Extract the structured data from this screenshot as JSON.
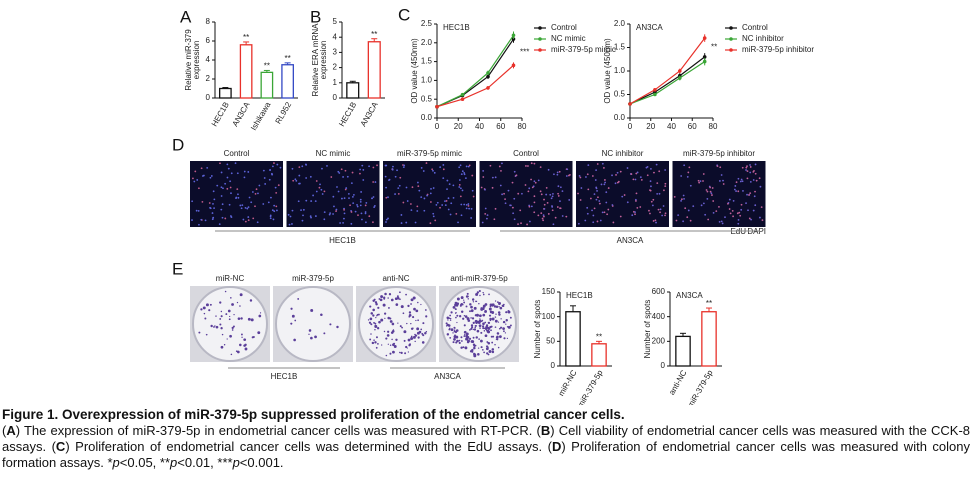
{
  "chart_data": [
    {
      "type": "bar",
      "panel": "A",
      "ylabel": "Relative miR-379\nexpression",
      "categories": [
        "HEC1B",
        "AN3CA",
        "Ishikawa",
        "RL952"
      ],
      "values": [
        1.0,
        5.6,
        2.7,
        3.5
      ],
      "errors": [
        0.1,
        0.3,
        0.2,
        0.2
      ],
      "colors": [
        "#111111",
        "#e8312a",
        "#3aa636",
        "#3348c4"
      ],
      "significance": [
        null,
        "**",
        "**",
        "**"
      ],
      "ylim": [
        0,
        8
      ],
      "yticks": [
        0,
        2,
        4,
        6,
        8
      ]
    },
    {
      "type": "bar",
      "panel": "B",
      "ylabel": "Relative ERA mRNA\nexpression",
      "categories": [
        "HEC1B",
        "AN3CA"
      ],
      "values": [
        1.0,
        3.7
      ],
      "errors": [
        0.1,
        0.2
      ],
      "colors": [
        "#111111",
        "#e8312a"
      ],
      "significance": [
        null,
        "**"
      ],
      "ylim": [
        0,
        5
      ],
      "yticks": [
        0,
        1,
        2,
        3,
        4,
        5
      ]
    },
    {
      "type": "line",
      "panel": "C",
      "title": "HEC1B",
      "ylabel": "OD value (450nm)",
      "x": [
        0,
        24,
        48,
        72
      ],
      "series": [
        {
          "name": "Control",
          "color": "#111111",
          "values": [
            0.3,
            0.6,
            1.1,
            2.1
          ],
          "errors": [
            0.02,
            0.04,
            0.06,
            0.1
          ]
        },
        {
          "name": "NC mimic",
          "color": "#3aa636",
          "values": [
            0.3,
            0.62,
            1.2,
            2.2
          ],
          "errors": [
            0.02,
            0.04,
            0.06,
            0.1
          ]
        },
        {
          "name": "miR-379-5p mimic",
          "color": "#e8312a",
          "values": [
            0.3,
            0.5,
            0.8,
            1.4
          ],
          "errors": [
            0.02,
            0.03,
            0.05,
            0.08
          ]
        }
      ],
      "significance": "***",
      "xlim": [
        0,
        80
      ],
      "xticks": [
        0,
        20,
        40,
        60,
        80
      ],
      "ylim": [
        0,
        2.5
      ],
      "yticks": [
        {
          "value": 0,
          "label": "0.0"
        },
        {
          "value": 0.5,
          "label": "0.5"
        },
        {
          "value": 1,
          "label": "1.0"
        },
        {
          "value": 1.5,
          "label": "1.5"
        },
        {
          "value": 2,
          "label": "2.0"
        },
        {
          "value": 2.5,
          "label": "2.5"
        }
      ]
    },
    {
      "type": "line",
      "title": "AN3CA",
      "ylabel": "OD value (450nm)",
      "x": [
        0,
        24,
        48,
        72
      ],
      "series": [
        {
          "name": "Control",
          "color": "#111111",
          "values": [
            0.3,
            0.55,
            0.9,
            1.3
          ],
          "errors": [
            0.02,
            0.03,
            0.05,
            0.08
          ]
        },
        {
          "name": "NC inhibitor",
          "color": "#3aa636",
          "values": [
            0.3,
            0.5,
            0.85,
            1.2
          ],
          "errors": [
            0.02,
            0.03,
            0.05,
            0.08
          ]
        },
        {
          "name": "miR-379-5p inhibitor",
          "color": "#e8312a",
          "values": [
            0.3,
            0.6,
            1.0,
            1.7
          ],
          "errors": [
            0.02,
            0.03,
            0.05,
            0.08
          ]
        }
      ],
      "significance": "**",
      "xlim": [
        0,
        80
      ],
      "xticks": [
        0,
        20,
        40,
        60,
        80
      ],
      "ylim": [
        0,
        2
      ],
      "yticks": [
        {
          "value": 0,
          "label": "0.0"
        },
        {
          "value": 0.5,
          "label": "0.5"
        },
        {
          "value": 1,
          "label": "1.0"
        },
        {
          "value": 1.5,
          "label": "1.5"
        },
        {
          "value": 2,
          "label": "2.0"
        }
      ]
    },
    {
      "type": "bar",
      "title": "HEC1B",
      "ylabel": "Number of spots",
      "categories": [
        "miR-NC",
        "miR-379-5p"
      ],
      "values": [
        110,
        45
      ],
      "errors": [
        12,
        5
      ],
      "colors": [
        "#111111",
        "#e8312a"
      ],
      "significance": [
        null,
        "**"
      ],
      "ylim": [
        0,
        150
      ],
      "yticks": [
        0,
        50,
        100,
        150
      ]
    },
    {
      "type": "bar",
      "title": "AN3CA",
      "ylabel": "Number of spots",
      "categories": [
        "anti-NC",
        "anti-miR-379-5p"
      ],
      "values": [
        240,
        440
      ],
      "errors": [
        25,
        30
      ],
      "colors": [
        "#111111",
        "#e8312a"
      ],
      "significance": [
        null,
        "**"
      ],
      "ylim": [
        0,
        600
      ],
      "yticks": [
        0,
        200,
        400,
        600
      ]
    }
  ],
  "edu_panel": {
    "panel": "D",
    "columns": [
      "Control",
      "NC mimic",
      "miR-379-5p mimic",
      "Control",
      "NC inhibitor",
      "miR-379-5p inhibitor"
    ],
    "groups": [
      "HEC1B",
      "AN3CA"
    ],
    "stains": [
      "EdU",
      "DAPI"
    ]
  },
  "colony_panel": {
    "panel": "E",
    "columns": [
      "miR-NC",
      "miR-379-5p",
      "anti-NC",
      "anti-miR-379-5p"
    ],
    "groups": [
      "HEC1B",
      "AN3CA"
    ]
  },
  "caption": {
    "title": "Figure 1. Overexpression of miR-379-5p suppressed proliferation of the endometrial cancer cells.",
    "body": [
      "(",
      "A",
      ") The expression of miR-379-5p in endometrial cancer cells was measured with RT-PCR. (",
      "B",
      ") Cell viability of endometrial cancer cells was measured with the CCK-8 assays. (",
      "C",
      ") Proliferation of endometrial cancer cells was determined with the EdU assays. (",
      "D",
      ") Proliferation of endometrial cancer cells was measured with colony formation assays. *",
      "p",
      "<0.05, **",
      "p",
      "<0.01, ***",
      "p",
      "<0.001."
    ]
  }
}
